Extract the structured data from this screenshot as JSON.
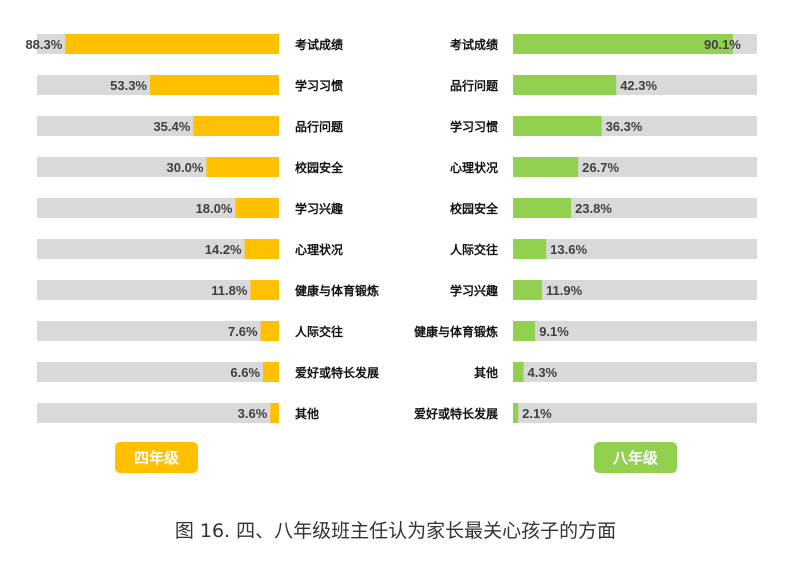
{
  "chart_data": [
    {
      "type": "bar",
      "orientation": "horizontal",
      "direction": "right-to-left",
      "series_label": "四年级",
      "categories": [
        "考试成绩",
        "学习习惯",
        "品行问题",
        "校园安全",
        "学习兴趣",
        "心理状况",
        "健康与体育锻炼",
        "人际交往",
        "爱好或特长发展",
        "其他"
      ],
      "values": [
        88.3,
        53.3,
        35.4,
        30.0,
        18.0,
        14.2,
        11.8,
        7.6,
        6.6,
        3.6
      ],
      "value_labels": [
        "88.3%",
        "53.3%",
        "35.4%",
        "30.0%",
        "18.0%",
        "14.2%",
        "11.8%",
        "7.6%",
        "6.6%",
        "3.6%"
      ],
      "xlim": [
        0,
        100
      ],
      "color": "#FFC000",
      "track_color": "#D9D9D9"
    },
    {
      "type": "bar",
      "orientation": "horizontal",
      "direction": "left-to-right",
      "series_label": "八年级",
      "categories": [
        "考试成绩",
        "品行问题",
        "学习习惯",
        "心理状况",
        "校园安全",
        "人际交往",
        "学习兴趣",
        "健康与体育锻炼",
        "其他",
        "爱好或特长发展"
      ],
      "values": [
        90.1,
        42.3,
        36.3,
        26.7,
        23.8,
        13.6,
        11.9,
        9.1,
        4.3,
        2.1
      ],
      "value_labels": [
        "90.1%",
        "42.3%",
        "36.3%",
        "26.7%",
        "23.8%",
        "13.6%",
        "11.9%",
        "9.1%",
        "4.3%",
        "2.1%"
      ],
      "xlim": [
        0,
        100
      ],
      "color": "#92D050",
      "track_color": "#D9D9D9"
    }
  ],
  "caption": "图 16. 四、八年级班主任认为家长最关心孩子的方面"
}
